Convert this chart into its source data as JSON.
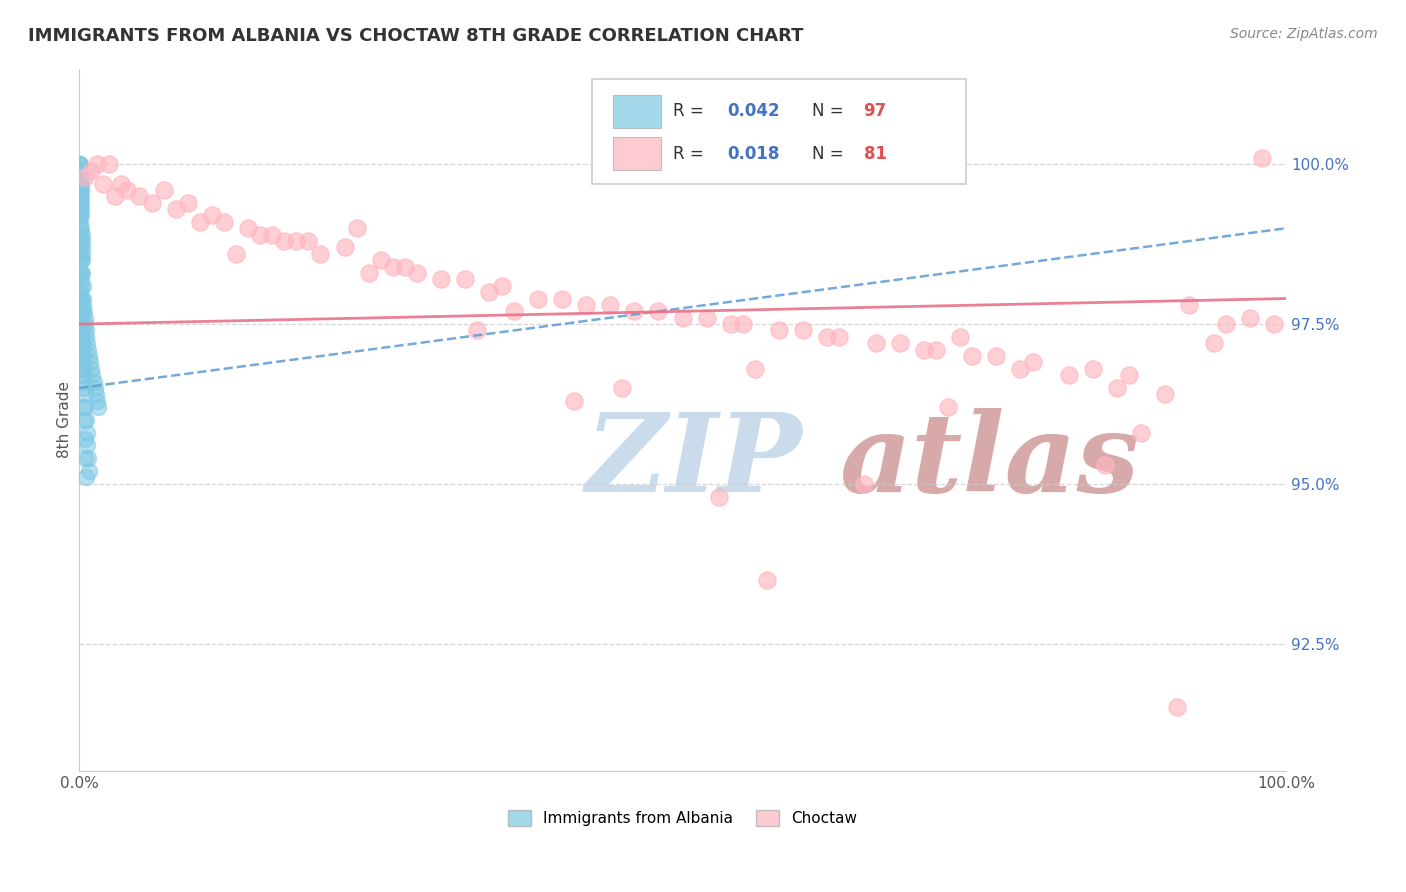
{
  "title": "IMMIGRANTS FROM ALBANIA VS CHOCTAW 8TH GRADE CORRELATION CHART",
  "source": "Source: ZipAtlas.com",
  "ylabel": "8th Grade",
  "xlim": [
    0.0,
    100.0
  ],
  "ylim": [
    90.5,
    101.5
  ],
  "yticks": [
    92.5,
    95.0,
    97.5,
    100.0
  ],
  "legend_R1": "0.042",
  "legend_N1": "97",
  "legend_R2": "0.018",
  "legend_N2": "81",
  "albania_color": "#7ec8e3",
  "choctaw_color": "#ffb6c1",
  "albania_line_color": "#5b9bd5",
  "choctaw_line_color": "#e8728a",
  "watermark": "ZIPatlas",
  "watermark_color_zip": "#c5d8ea",
  "watermark_color_atlas": "#d4a0a0",
  "albania_x": [
    0.0,
    0.0,
    0.05,
    0.05,
    0.08,
    0.08,
    0.1,
    0.1,
    0.12,
    0.12,
    0.15,
    0.15,
    0.15,
    0.18,
    0.18,
    0.2,
    0.2,
    0.22,
    0.22,
    0.25,
    0.25,
    0.28,
    0.3,
    0.35,
    0.4,
    0.45,
    0.5,
    0.55,
    0.6,
    0.65,
    0.7,
    0.8,
    0.9,
    1.0,
    1.1,
    1.2,
    1.3,
    1.4,
    1.5,
    1.6,
    0.02,
    0.02,
    0.04,
    0.04,
    0.06,
    0.06,
    0.08,
    0.08,
    0.1,
    0.1,
    0.12,
    0.14,
    0.16,
    0.18,
    0.2,
    0.22,
    0.24,
    0.26,
    0.28,
    0.3,
    0.05,
    0.07,
    0.09,
    0.11,
    0.13,
    0.17,
    0.19,
    0.21,
    0.23,
    0.27,
    0.32,
    0.38,
    0.42,
    0.48,
    0.52,
    0.58,
    0.62,
    0.68,
    0.72,
    0.78,
    0.02,
    0.03,
    0.05,
    0.06,
    0.08,
    0.1,
    0.12,
    0.15,
    0.18,
    0.22,
    0.26,
    0.3,
    0.35,
    0.4,
    0.45,
    0.5,
    0.55
  ],
  "albania_y": [
    100.0,
    99.9,
    100.0,
    99.8,
    99.9,
    99.7,
    99.8,
    99.6,
    99.7,
    99.5,
    99.6,
    99.4,
    99.2,
    99.3,
    99.0,
    98.9,
    98.7,
    98.8,
    98.5,
    98.6,
    98.3,
    98.1,
    97.9,
    97.8,
    97.7,
    97.6,
    97.5,
    97.4,
    97.3,
    97.2,
    97.1,
    97.0,
    96.9,
    96.8,
    96.7,
    96.6,
    96.5,
    96.4,
    96.3,
    96.2,
    100.0,
    99.8,
    99.7,
    99.5,
    99.4,
    99.2,
    99.1,
    98.9,
    98.7,
    98.5,
    98.3,
    98.1,
    97.9,
    97.7,
    97.5,
    97.4,
    97.2,
    97.1,
    96.9,
    96.7,
    99.6,
    99.3,
    99.0,
    98.8,
    98.5,
    98.2,
    97.9,
    97.7,
    97.5,
    97.2,
    97.0,
    96.8,
    96.6,
    96.4,
    96.2,
    96.0,
    95.8,
    95.6,
    95.4,
    95.2,
    99.5,
    99.2,
    98.9,
    98.6,
    98.3,
    98.0,
    97.7,
    97.4,
    97.2,
    97.0,
    96.8,
    96.5,
    96.2,
    96.0,
    95.7,
    95.4,
    95.1
  ],
  "choctaw_x": [
    0.5,
    1.5,
    2.5,
    3.5,
    5.0,
    7.0,
    9.0,
    11.0,
    14.0,
    17.0,
    20.0,
    23.0,
    26.0,
    30.0,
    34.0,
    38.0,
    42.0,
    46.0,
    50.0,
    54.0,
    58.0,
    62.0,
    66.0,
    70.0,
    74.0,
    78.0,
    82.0,
    86.0,
    90.0,
    94.0,
    98.0,
    1.0,
    4.0,
    8.0,
    12.0,
    16.0,
    22.0,
    28.0,
    35.0,
    40.0,
    48.0,
    55.0,
    63.0,
    71.0,
    79.0,
    87.0,
    95.0,
    2.0,
    6.0,
    10.0,
    18.0,
    25.0,
    32.0,
    44.0,
    52.0,
    60.0,
    68.0,
    76.0,
    84.0,
    92.0,
    3.0,
    13.0,
    24.0,
    36.0,
    56.0,
    72.0,
    88.0,
    97.0,
    15.0,
    45.0,
    65.0,
    85.0,
    99.0,
    57.0,
    73.0,
    91.0,
    33.0,
    19.0,
    27.0,
    41.0,
    53.0
  ],
  "choctaw_y": [
    99.8,
    100.0,
    100.0,
    99.7,
    99.5,
    99.6,
    99.4,
    99.2,
    99.0,
    98.8,
    98.6,
    99.0,
    98.4,
    98.2,
    98.0,
    97.9,
    97.8,
    97.7,
    97.6,
    97.5,
    97.4,
    97.3,
    97.2,
    97.1,
    97.0,
    96.8,
    96.7,
    96.5,
    96.4,
    97.2,
    100.1,
    99.9,
    99.6,
    99.3,
    99.1,
    98.9,
    98.7,
    98.3,
    98.1,
    97.9,
    97.7,
    97.5,
    97.3,
    97.1,
    96.9,
    96.7,
    97.5,
    99.7,
    99.4,
    99.1,
    98.8,
    98.5,
    98.2,
    97.8,
    97.6,
    97.4,
    97.2,
    97.0,
    96.8,
    97.8,
    99.5,
    98.6,
    98.3,
    97.7,
    96.8,
    96.2,
    95.8,
    97.6,
    98.9,
    96.5,
    95.0,
    95.3,
    97.5,
    93.5,
    97.3,
    91.5,
    97.4,
    98.8,
    98.4,
    96.3,
    94.8
  ],
  "albania_trend_x": [
    0.0,
    100.0
  ],
  "albania_trend_y_start": 96.5,
  "albania_trend_y_end": 99.0,
  "choctaw_trend_x": [
    0.0,
    100.0
  ],
  "choctaw_trend_y_start": 97.5,
  "choctaw_trend_y_end": 97.9
}
